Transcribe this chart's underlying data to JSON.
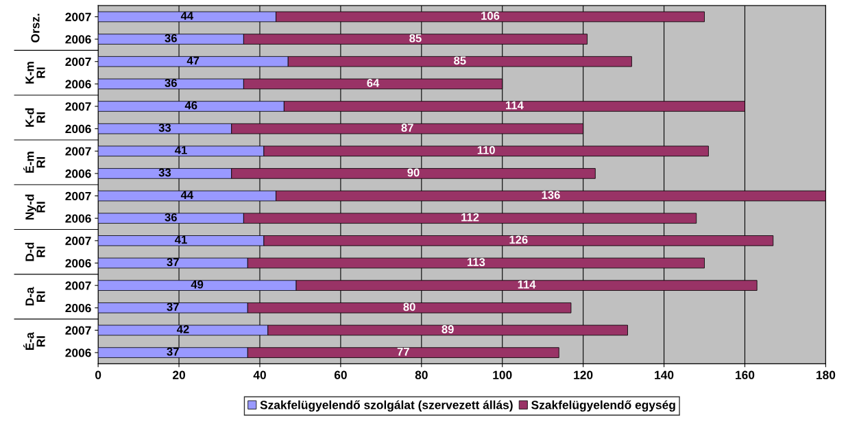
{
  "chart_data": {
    "type": "bar",
    "orientation": "horizontal",
    "stacked": true,
    "categories": [
      "2007",
      "2006",
      "2007",
      "2006",
      "2007",
      "2006",
      "2007",
      "2006",
      "2007",
      "2006",
      "2007",
      "2006",
      "2007",
      "2006",
      "2007",
      "2006"
    ],
    "annotations": [
      "Orsz.",
      "K-m RI",
      "K-d RI",
      "É-m RI",
      "Ny-d RI",
      "D-d RI",
      "D-a RI",
      "É-a RI"
    ],
    "series": [
      {
        "name": "Szakfelügyelendő szolgálat (szervezett állás)",
        "color": "#9999ff",
        "values": [
          44,
          36,
          47,
          36,
          46,
          33,
          41,
          33,
          44,
          36,
          41,
          37,
          49,
          37,
          42,
          37
        ]
      },
      {
        "name": "Szakfelügyelendő egység",
        "color": "#993366",
        "values": [
          106,
          85,
          85,
          64,
          114,
          87,
          110,
          90,
          136,
          112,
          126,
          113,
          114,
          80,
          89,
          77
        ]
      }
    ],
    "xlim": [
      0,
      180
    ],
    "xticks": [
      0,
      20,
      40,
      60,
      80,
      100,
      120,
      140,
      160,
      180
    ],
    "grid": "x",
    "legend": "bottom",
    "data_labels": true
  }
}
